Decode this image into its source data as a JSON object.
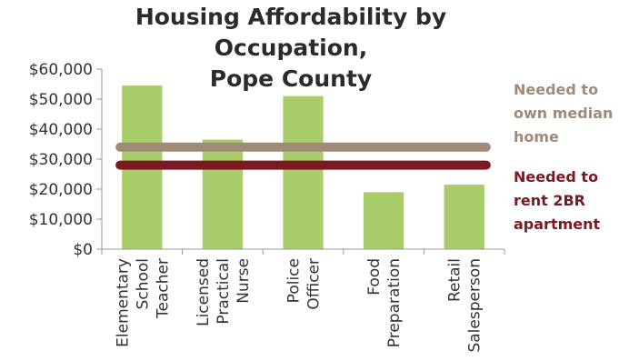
{
  "chart_data": {
    "type": "bar",
    "title": [
      "Housing Affordability by Occupation,",
      "Pope County"
    ],
    "categories": [
      [
        "Elementary",
        "School",
        "Teacher"
      ],
      [
        "Licensed",
        "Practical",
        "Nurse"
      ],
      [
        "Police",
        "Officer"
      ],
      [
        "Food",
        "Preparation"
      ],
      [
        "Retail",
        "Salesperson"
      ]
    ],
    "values": [
      54500,
      36500,
      51000,
      19000,
      21500
    ],
    "bar_color": "#a9cd6a",
    "ylim": [
      0,
      60000
    ],
    "yticks": [
      0,
      10000,
      20000,
      30000,
      40000,
      50000,
      60000
    ],
    "ytick_labels": [
      "$0",
      "$10,000",
      "$20,000",
      "$30,000",
      "$40,000",
      "$50,000",
      "$60,000"
    ],
    "reference_lines": [
      {
        "name": [
          "Needed to",
          "own median",
          "home"
        ],
        "value": 34000,
        "color": "#a08a78"
      },
      {
        "name": [
          "Needed to",
          "rent 2BR",
          "apartment"
        ],
        "value": 28000,
        "color": "#7b1a22"
      }
    ],
    "grid": false
  }
}
